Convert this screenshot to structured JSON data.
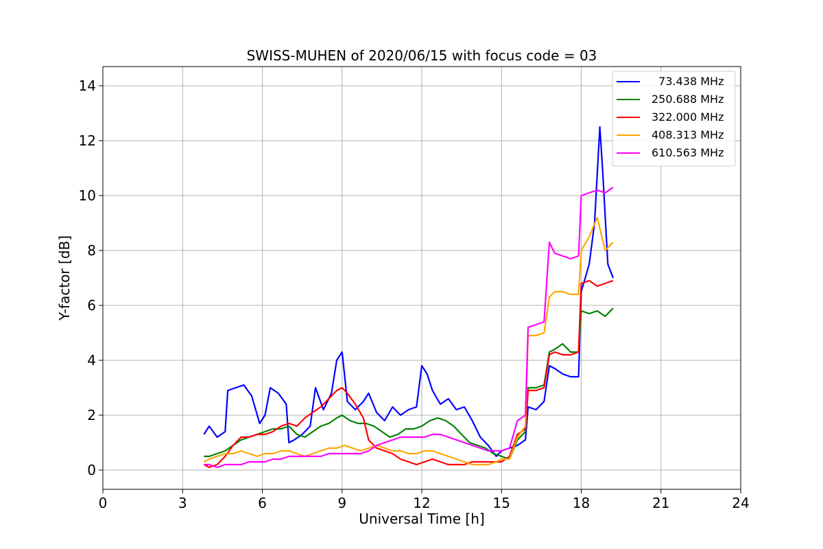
{
  "chart_data": {
    "type": "line",
    "title": "SWISS-MUHEN of 2020/06/15 with focus code = 03",
    "xlabel": "Universal Time [h]",
    "ylabel": "Y-factor [dB]",
    "xlim": [
      0,
      24
    ],
    "ylim": [
      -0.7,
      14.7
    ],
    "xticks": [
      "0",
      "3",
      "6",
      "9",
      "12",
      "15",
      "18",
      "21",
      "24"
    ],
    "yticks": [
      "0",
      "2",
      "4",
      "6",
      "8",
      "10",
      "12",
      "14"
    ],
    "grid": true,
    "legend_position": "top-right",
    "series": [
      {
        "name": "  73.438 MHz",
        "color": "#0000ff",
        "x": [
          3.8,
          4.0,
          4.3,
          4.6,
          4.7,
          5.0,
          5.3,
          5.6,
          5.9,
          6.1,
          6.3,
          6.6,
          6.9,
          7.0,
          7.2,
          7.5,
          7.8,
          8.0,
          8.3,
          8.6,
          8.8,
          9.0,
          9.2,
          9.5,
          9.8,
          10.0,
          10.3,
          10.6,
          10.9,
          11.2,
          11.5,
          11.8,
          12.0,
          12.2,
          12.4,
          12.7,
          13.0,
          13.3,
          13.6,
          13.9,
          14.2,
          14.5,
          14.8,
          15.0,
          15.3,
          15.6,
          15.9,
          16.0,
          16.3,
          16.6,
          16.8,
          17.0,
          17.3,
          17.6,
          17.9,
          18.0,
          18.3,
          18.5,
          18.7,
          18.8,
          19.0,
          19.2
        ],
        "y": [
          1.3,
          1.6,
          1.2,
          1.4,
          2.9,
          3.0,
          3.1,
          2.7,
          1.7,
          2.0,
          3.0,
          2.8,
          2.4,
          1.0,
          1.1,
          1.3,
          1.6,
          3.0,
          2.2,
          2.8,
          4.0,
          4.3,
          2.5,
          2.2,
          2.5,
          2.8,
          2.1,
          1.8,
          2.3,
          2.0,
          2.2,
          2.3,
          3.8,
          3.5,
          2.9,
          2.4,
          2.6,
          2.2,
          2.3,
          1.8,
          1.2,
          0.9,
          0.5,
          0.7,
          0.8,
          0.9,
          1.1,
          2.3,
          2.2,
          2.5,
          3.8,
          3.7,
          3.5,
          3.4,
          3.4,
          6.5,
          7.5,
          9.0,
          12.5,
          11.0,
          7.5,
          7.0
        ]
      },
      {
        "name": "250.688 MHz",
        "color": "#008000",
        "x": [
          3.8,
          4.0,
          4.3,
          4.6,
          4.9,
          5.2,
          5.5,
          5.8,
          6.1,
          6.4,
          6.7,
          7.0,
          7.3,
          7.6,
          7.9,
          8.2,
          8.5,
          8.8,
          9.0,
          9.3,
          9.6,
          9.9,
          10.2,
          10.5,
          10.8,
          11.1,
          11.4,
          11.7,
          12.0,
          12.3,
          12.6,
          12.9,
          13.2,
          13.5,
          13.8,
          14.1,
          14.4,
          14.7,
          15.0,
          15.3,
          15.6,
          15.9,
          16.0,
          16.3,
          16.6,
          16.8,
          17.0,
          17.3,
          17.6,
          17.9,
          18.0,
          18.3,
          18.6,
          18.9,
          19.2
        ],
        "y": [
          0.5,
          0.5,
          0.6,
          0.7,
          0.9,
          1.1,
          1.2,
          1.3,
          1.4,
          1.5,
          1.5,
          1.6,
          1.3,
          1.2,
          1.4,
          1.6,
          1.7,
          1.9,
          2.0,
          1.8,
          1.7,
          1.7,
          1.6,
          1.4,
          1.2,
          1.3,
          1.5,
          1.5,
          1.6,
          1.8,
          1.9,
          1.8,
          1.6,
          1.3,
          1.0,
          0.9,
          0.8,
          0.6,
          0.5,
          0.4,
          1.1,
          1.4,
          3.0,
          3.0,
          3.1,
          4.3,
          4.4,
          4.6,
          4.3,
          4.3,
          5.8,
          5.7,
          5.8,
          5.6,
          5.9
        ]
      },
      {
        "name": "322.000 MHz",
        "color": "#ff0000",
        "x": [
          3.8,
          4.0,
          4.3,
          4.6,
          4.9,
          5.2,
          5.5,
          5.8,
          6.1,
          6.4,
          6.7,
          7.0,
          7.3,
          7.6,
          7.9,
          8.2,
          8.5,
          8.8,
          9.0,
          9.2,
          9.5,
          9.8,
          10.0,
          10.3,
          10.6,
          10.9,
          11.2,
          11.5,
          11.8,
          12.1,
          12.4,
          12.7,
          13.0,
          13.3,
          13.6,
          13.9,
          14.2,
          14.5,
          14.8,
          15.0,
          15.3,
          15.6,
          15.9,
          16.0,
          16.3,
          16.6,
          16.8,
          17.0,
          17.3,
          17.6,
          17.9,
          18.0,
          18.3,
          18.6,
          18.9,
          19.2
        ],
        "y": [
          0.2,
          0.1,
          0.2,
          0.5,
          0.9,
          1.2,
          1.2,
          1.3,
          1.3,
          1.4,
          1.6,
          1.7,
          1.6,
          1.9,
          2.1,
          2.3,
          2.6,
          2.9,
          3.0,
          2.8,
          2.4,
          1.9,
          1.1,
          0.8,
          0.7,
          0.6,
          0.4,
          0.3,
          0.2,
          0.3,
          0.4,
          0.3,
          0.2,
          0.2,
          0.2,
          0.3,
          0.3,
          0.3,
          0.3,
          0.3,
          0.5,
          1.3,
          1.5,
          2.9,
          2.9,
          3.0,
          4.2,
          4.3,
          4.2,
          4.2,
          4.3,
          6.8,
          6.9,
          6.7,
          6.8,
          6.9
        ]
      },
      {
        "name": "408.313 MHz",
        "color": "#ffa500",
        "x": [
          3.8,
          4.0,
          4.3,
          4.6,
          4.9,
          5.2,
          5.5,
          5.8,
          6.1,
          6.4,
          6.7,
          7.0,
          7.3,
          7.6,
          7.9,
          8.2,
          8.5,
          8.8,
          9.1,
          9.4,
          9.7,
          10.0,
          10.3,
          10.6,
          10.9,
          11.2,
          11.5,
          11.8,
          12.1,
          12.4,
          12.7,
          13.0,
          13.3,
          13.6,
          13.9,
          14.2,
          14.5,
          14.8,
          15.0,
          15.3,
          15.6,
          15.9,
          16.0,
          16.3,
          16.6,
          16.8,
          17.0,
          17.3,
          17.6,
          17.9,
          18.0,
          18.3,
          18.6,
          18.9,
          19.2
        ],
        "y": [
          0.3,
          0.4,
          0.5,
          0.6,
          0.6,
          0.7,
          0.6,
          0.5,
          0.6,
          0.6,
          0.7,
          0.7,
          0.6,
          0.5,
          0.6,
          0.7,
          0.8,
          0.8,
          0.9,
          0.8,
          0.7,
          0.8,
          0.9,
          0.8,
          0.7,
          0.7,
          0.6,
          0.6,
          0.7,
          0.7,
          0.6,
          0.5,
          0.4,
          0.3,
          0.2,
          0.2,
          0.2,
          0.3,
          0.4,
          0.4,
          1.2,
          1.6,
          4.9,
          4.9,
          5.0,
          6.3,
          6.5,
          6.5,
          6.4,
          6.4,
          8.0,
          8.5,
          9.2,
          8.0,
          8.3
        ]
      },
      {
        "name": "610.563 MHz",
        "color": "#ff00ff",
        "x": [
          3.8,
          4.0,
          4.3,
          4.6,
          4.9,
          5.2,
          5.5,
          5.8,
          6.1,
          6.4,
          6.7,
          7.0,
          7.3,
          7.6,
          7.9,
          8.2,
          8.5,
          8.8,
          9.1,
          9.4,
          9.7,
          10.0,
          10.3,
          10.6,
          10.9,
          11.2,
          11.5,
          11.8,
          12.1,
          12.4,
          12.7,
          13.0,
          13.3,
          13.6,
          13.9,
          14.2,
          14.5,
          14.8,
          15.0,
          15.3,
          15.6,
          15.9,
          16.0,
          16.3,
          16.6,
          16.8,
          17.0,
          17.3,
          17.6,
          17.9,
          18.0,
          18.3,
          18.6,
          18.9,
          19.2
        ],
        "y": [
          0.2,
          0.2,
          0.1,
          0.2,
          0.2,
          0.2,
          0.3,
          0.3,
          0.3,
          0.4,
          0.4,
          0.5,
          0.5,
          0.5,
          0.5,
          0.5,
          0.6,
          0.6,
          0.6,
          0.6,
          0.6,
          0.7,
          0.9,
          1.0,
          1.1,
          1.2,
          1.2,
          1.2,
          1.2,
          1.3,
          1.3,
          1.2,
          1.1,
          1.0,
          0.9,
          0.8,
          0.7,
          0.7,
          0.7,
          0.8,
          1.8,
          2.0,
          5.2,
          5.3,
          5.4,
          8.3,
          7.9,
          7.8,
          7.7,
          7.8,
          10.0,
          10.1,
          10.2,
          10.1,
          10.3
        ]
      }
    ]
  }
}
